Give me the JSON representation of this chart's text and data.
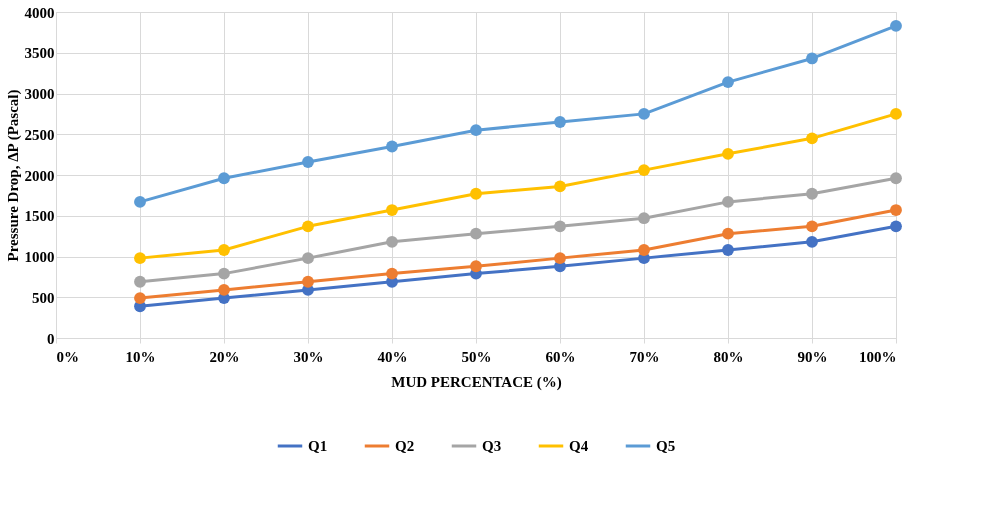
{
  "chart_data": {
    "type": "line",
    "xlabel": "MUD PERCENTACE (%)",
    "ylabel": "Pressure Drop, ΔP (Pascal)",
    "x": [
      10,
      20,
      30,
      40,
      50,
      60,
      70,
      80,
      90,
      100
    ],
    "xlim": [
      0,
      100
    ],
    "xticks": [
      {
        "value": 0,
        "label": "0%"
      },
      {
        "value": 10,
        "label": "10%"
      },
      {
        "value": 20,
        "label": "20%"
      },
      {
        "value": 30,
        "label": "30%"
      },
      {
        "value": 40,
        "label": "40%"
      },
      {
        "value": 50,
        "label": "50%"
      },
      {
        "value": 60,
        "label": "60%"
      },
      {
        "value": 70,
        "label": "70%"
      },
      {
        "value": 80,
        "label": "80%"
      },
      {
        "value": 90,
        "label": "90%"
      },
      {
        "value": 100,
        "label": "100%"
      }
    ],
    "ylim": [
      0,
      4000
    ],
    "yticks": [
      0,
      500,
      1000,
      1500,
      2000,
      2500,
      3000,
      3500,
      4000
    ],
    "grid": true,
    "legend": "bottom",
    "marker": "circle",
    "line_style": "solid",
    "series": [
      {
        "name": "Q1",
        "color": "#4472c4",
        "values": [
          390,
          490,
          590,
          690,
          790,
          880,
          980,
          1080,
          1180,
          1370
        ]
      },
      {
        "name": "Q2",
        "color": "#ed7d31",
        "values": [
          490,
          590,
          690,
          790,
          880,
          980,
          1080,
          1280,
          1370,
          1570
        ]
      },
      {
        "name": "Q3",
        "color": "#a5a5a5",
        "values": [
          690,
          790,
          980,
          1180,
          1280,
          1370,
          1470,
          1670,
          1770,
          1960
        ]
      },
      {
        "name": "Q4",
        "color": "#ffc000",
        "values": [
          980,
          1080,
          1370,
          1570,
          1770,
          1860,
          2060,
          2260,
          2450,
          2750
        ]
      },
      {
        "name": "Q5",
        "color": "#5b9bd5",
        "values": [
          1670,
          1960,
          2160,
          2350,
          2550,
          2650,
          2750,
          3140,
          3430,
          3830
        ]
      }
    ]
  }
}
